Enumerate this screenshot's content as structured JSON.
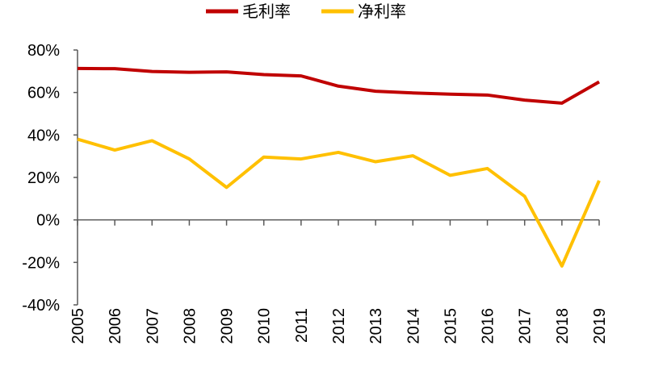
{
  "chart_data": {
    "type": "line",
    "title": "",
    "xlabel": "",
    "ylabel": "",
    "categories": [
      "2005",
      "2006",
      "2007",
      "2008",
      "2009",
      "2010",
      "2011",
      "2012",
      "2013",
      "2014",
      "2015",
      "2016",
      "2017",
      "2018",
      "2019"
    ],
    "ylim": [
      -40,
      80
    ],
    "yticks": [
      80,
      60,
      40,
      20,
      0,
      -20,
      -40
    ],
    "ytick_labels": [
      "80%",
      "60%",
      "40%",
      "20%",
      "0%",
      "-20%",
      "-40%"
    ],
    "grid": false,
    "legend_position": "top",
    "series": [
      {
        "name": "毛利率",
        "color": "#C00000",
        "values": [
          71.3,
          71.2,
          69.9,
          69.5,
          69.7,
          68.4,
          67.8,
          63.0,
          60.6,
          59.8,
          59.2,
          58.8,
          56.4,
          55.0,
          65.0
        ]
      },
      {
        "name": "净利率",
        "color": "#FFC000",
        "values": [
          38.0,
          32.9,
          37.3,
          28.7,
          15.3,
          29.6,
          28.7,
          31.8,
          27.4,
          30.2,
          21.0,
          24.2,
          11.1,
          -21.7,
          18.5
        ]
      }
    ]
  }
}
